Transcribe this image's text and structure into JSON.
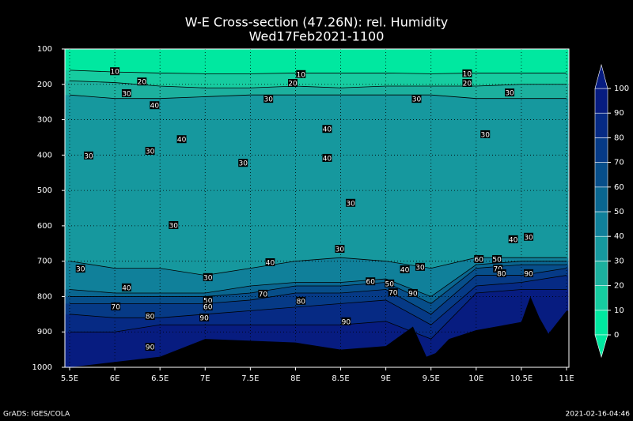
{
  "chart_data": {
    "type": "contour",
    "title": "W-E Cross-section (47.26N): rel. Humidity",
    "subtitle": "Wed17Feb2021-1100",
    "xlim": [
      5.5,
      11
    ],
    "xticks": [
      {
        "value": 5.5,
        "label": "5.5E"
      },
      {
        "value": 6,
        "label": "6E"
      },
      {
        "value": 6.5,
        "label": "6.5E"
      },
      {
        "value": 7,
        "label": "7E"
      },
      {
        "value": 7.5,
        "label": "7.5E"
      },
      {
        "value": 8,
        "label": "8E"
      },
      {
        "value": 8.5,
        "label": "8.5E"
      },
      {
        "value": 9,
        "label": "9E"
      },
      {
        "value": 9.5,
        "label": "9.5E"
      },
      {
        "value": 10,
        "label": "10E"
      },
      {
        "value": 10.5,
        "label": "10.5E"
      },
      {
        "value": 11,
        "label": "11E"
      }
    ],
    "ylim": [
      100,
      1000
    ],
    "yticks": [
      100,
      200,
      300,
      400,
      500,
      600,
      700,
      800,
      900,
      1000
    ],
    "grid": true,
    "x": [
      5.5,
      6,
      6.5,
      7,
      7.5,
      8,
      8.5,
      9,
      9.5,
      10,
      10.5,
      11
    ],
    "contours": [
      {
        "level": 10,
        "values": [
          160,
          165,
          168,
          170,
          170,
          168,
          168,
          168,
          170,
          168,
          168,
          168
        ]
      },
      {
        "level": 20,
        "values": [
          190,
          195,
          205,
          210,
          210,
          205,
          210,
          205,
          205,
          205,
          200,
          200
        ]
      },
      {
        "level": 30,
        "values": [
          230,
          240,
          240,
          235,
          230,
          230,
          230,
          230,
          230,
          240,
          240,
          240
        ]
      },
      {
        "level": 40,
        "values": [
          700,
          720,
          720,
          740,
          720,
          700,
          690,
          700,
          720,
          690,
          690,
          690
        ]
      },
      {
        "level": 50,
        "values": [
          780,
          790,
          790,
          790,
          770,
          760,
          760,
          750,
          800,
          710,
          700,
          700
        ]
      },
      {
        "level": 60,
        "values": [
          800,
          800,
          800,
          800,
          790,
          770,
          770,
          760,
          820,
          720,
          710,
          710
        ]
      },
      {
        "level": 70,
        "values": [
          820,
          820,
          820,
          820,
          810,
          790,
          790,
          780,
          850,
          740,
          740,
          720
        ]
      },
      {
        "level": 80,
        "values": [
          850,
          860,
          860,
          850,
          840,
          830,
          820,
          810,
          880,
          770,
          760,
          740
        ]
      },
      {
        "level": 90,
        "values": [
          900,
          900,
          880,
          880,
          880,
          880,
          880,
          870,
          920,
          790,
          780,
          780
        ]
      }
    ],
    "surface": {
      "x": [
        5.5,
        6,
        6.5,
        7,
        7.5,
        8,
        8.5,
        9,
        9.3,
        9.45,
        9.55,
        9.7,
        10,
        10.5,
        10.6,
        10.7,
        10.8,
        11
      ],
      "values": [
        1000,
        985,
        970,
        920,
        925,
        930,
        950,
        940,
        885,
        970,
        960,
        920,
        895,
        872,
        800,
        860,
        905,
        840
      ]
    },
    "labels": [
      {
        "value": 10,
        "x": 6.0,
        "y": 163
      },
      {
        "value": 10,
        "x": 8.06,
        "y": 171
      },
      {
        "value": 10,
        "x": 9.9,
        "y": 169
      },
      {
        "value": 20,
        "x": 6.3,
        "y": 192
      },
      {
        "value": 20,
        "x": 7.97,
        "y": 196
      },
      {
        "value": 20,
        "x": 9.9,
        "y": 196
      },
      {
        "value": 30,
        "x": 6.13,
        "y": 225
      },
      {
        "value": 40,
        "x": 6.44,
        "y": 259
      },
      {
        "value": 30,
        "x": 7.7,
        "y": 241
      },
      {
        "value": 30,
        "x": 9.34,
        "y": 241
      },
      {
        "value": 30,
        "x": 10.37,
        "y": 223
      },
      {
        "value": 40,
        "x": 8.35,
        "y": 326
      },
      {
        "value": 30,
        "x": 10.1,
        "y": 341
      },
      {
        "value": 40,
        "x": 6.74,
        "y": 355
      },
      {
        "value": 30,
        "x": 6.39,
        "y": 388
      },
      {
        "value": 30,
        "x": 5.71,
        "y": 401
      },
      {
        "value": 40,
        "x": 8.35,
        "y": 408
      },
      {
        "value": 30,
        "x": 7.42,
        "y": 422
      },
      {
        "value": 30,
        "x": 8.61,
        "y": 535
      },
      {
        "value": 30,
        "x": 6.65,
        "y": 598
      },
      {
        "value": 30,
        "x": 8.49,
        "y": 665
      },
      {
        "value": 40,
        "x": 7.72,
        "y": 703
      },
      {
        "value": 30,
        "x": 5.62,
        "y": 721
      },
      {
        "value": 40,
        "x": 10.41,
        "y": 638
      },
      {
        "value": 30,
        "x": 10.58,
        "y": 631
      },
      {
        "value": 60,
        "x": 10.03,
        "y": 694
      },
      {
        "value": 50,
        "x": 10.23,
        "y": 694
      },
      {
        "value": 70,
        "x": 10.24,
        "y": 721
      },
      {
        "value": 80,
        "x": 10.28,
        "y": 734
      },
      {
        "value": 90,
        "x": 10.58,
        "y": 734
      },
      {
        "value": 30,
        "x": 9.38,
        "y": 716
      },
      {
        "value": 40,
        "x": 9.21,
        "y": 723
      },
      {
        "value": 30,
        "x": 7.03,
        "y": 745
      },
      {
        "value": 60,
        "x": 8.83,
        "y": 757
      },
      {
        "value": 50,
        "x": 9.04,
        "y": 763
      },
      {
        "value": 70,
        "x": 9.08,
        "y": 788
      },
      {
        "value": 90,
        "x": 9.3,
        "y": 790
      },
      {
        "value": 40,
        "x": 6.13,
        "y": 774
      },
      {
        "value": 70,
        "x": 7.64,
        "y": 792
      },
      {
        "value": 80,
        "x": 8.06,
        "y": 812
      },
      {
        "value": 50,
        "x": 7.03,
        "y": 810
      },
      {
        "value": 60,
        "x": 7.03,
        "y": 828
      },
      {
        "value": 70,
        "x": 6.01,
        "y": 828
      },
      {
        "value": 80,
        "x": 6.39,
        "y": 855
      },
      {
        "value": 90,
        "x": 6.99,
        "y": 859
      },
      {
        "value": 90,
        "x": 8.56,
        "y": 870
      },
      {
        "value": 90,
        "x": 6.39,
        "y": 942
      }
    ],
    "colorbar": {
      "levels": [
        0,
        10,
        20,
        30,
        40,
        50,
        60,
        70,
        80,
        90,
        100
      ],
      "colors": [
        "#00e8a0",
        "#16cca0",
        "#1cb09e",
        "#16989e",
        "#10809a",
        "#0a6690",
        "#074e8a",
        "#063a86",
        "#062a84",
        "#071c80"
      ]
    },
    "footer_left": "GrADS: IGES/COLA",
    "footer_right": "2021-02-16-04:46"
  }
}
